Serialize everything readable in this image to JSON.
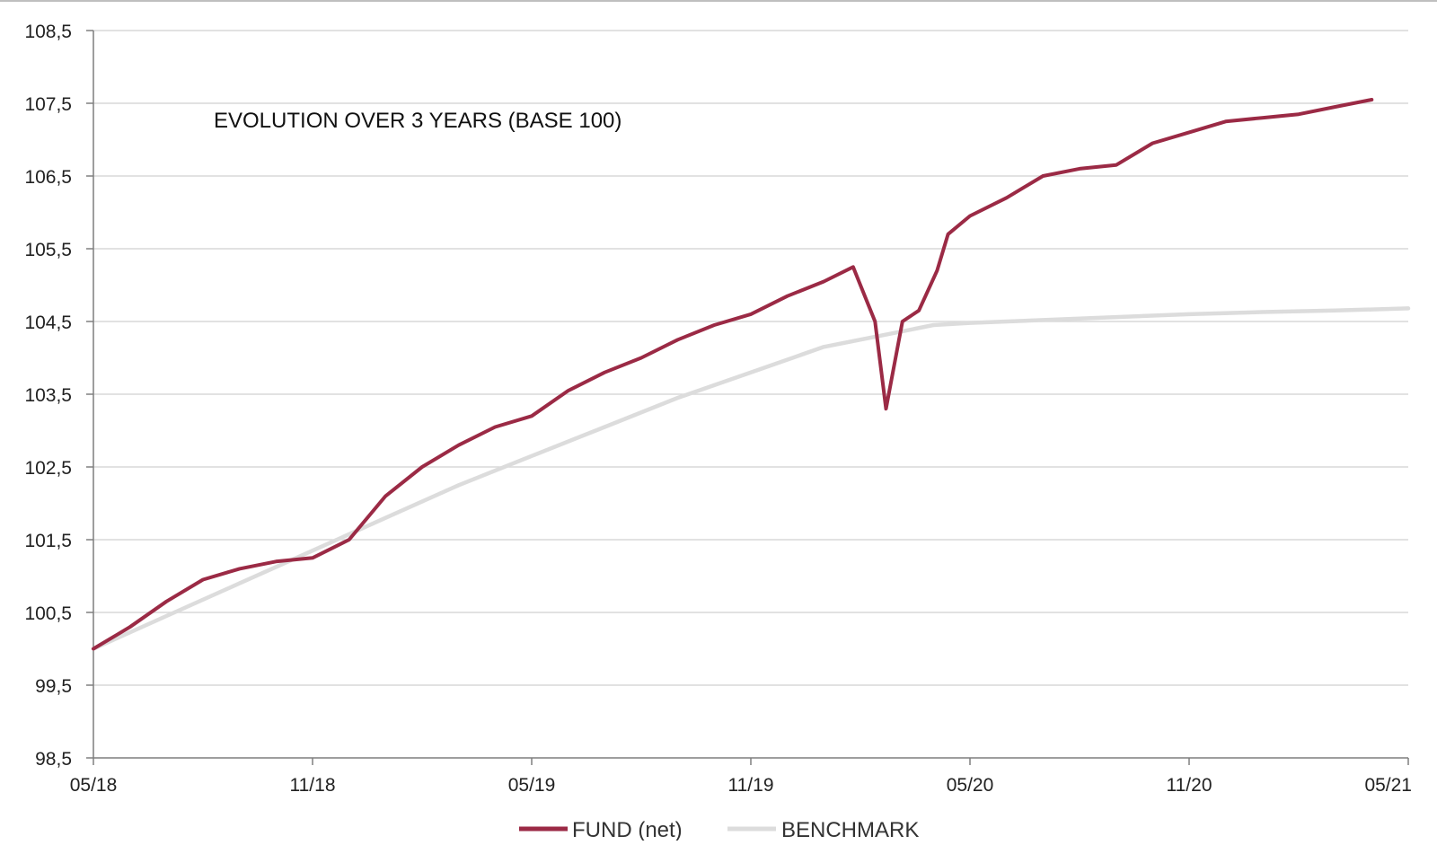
{
  "chart_data": {
    "type": "line",
    "title": "EVOLUTION OVER 3 YEARS (BASE 100)",
    "xlabel": "",
    "ylabel": "",
    "ylim": [
      98.5,
      108.5
    ],
    "yticks": [
      "108,5",
      "107,5",
      "106,5",
      "105,5",
      "104,5",
      "103,5",
      "102,5",
      "101,5",
      "100,5",
      "99,5",
      "98,5"
    ],
    "xticks": [
      "05/18",
      "11/18",
      "05/19",
      "11/19",
      "05/20",
      "11/20",
      "05/21"
    ],
    "grid": true,
    "legend": "bottom",
    "colors": {
      "fund": "#9b2a45",
      "benchmark": "#dcdcdc"
    },
    "series": [
      {
        "name": "FUND (net)",
        "key": "fund",
        "x": [
          "05/18",
          "06/18",
          "07/18",
          "08/18",
          "09/18",
          "10/18",
          "11/18",
          "12/18",
          "01/19",
          "02/19",
          "03/19",
          "04/19",
          "05/19",
          "06/19",
          "07/19",
          "08/19",
          "09/19",
          "10/19",
          "11/19",
          "12/19",
          "01/20",
          "02/20",
          "02/20",
          "03/20",
          "03/20",
          "03/20",
          "04/20",
          "04/20",
          "05/20",
          "05/20",
          "06/20",
          "07/20",
          "08/20",
          "09/20",
          "10/20",
          "11/20",
          "12/20",
          "01/21",
          "02/21",
          "03/21",
          "04/21",
          "05/21"
        ],
        "t": [
          0,
          1,
          2,
          3,
          4,
          5,
          6,
          7,
          8,
          9,
          10,
          11,
          12,
          13,
          14,
          15,
          16,
          17,
          18,
          19,
          20,
          20.8,
          21.0,
          21.4,
          21.7,
          21.85,
          22.15,
          22.6,
          23.1,
          23.4,
          24,
          25,
          26,
          27,
          28,
          29,
          30,
          31,
          32,
          33,
          34,
          35
        ],
        "values": [
          100.0,
          100.3,
          100.65,
          100.95,
          101.1,
          101.2,
          101.25,
          101.5,
          102.1,
          102.5,
          102.8,
          103.05,
          103.2,
          103.55,
          103.8,
          104.0,
          104.25,
          104.45,
          104.6,
          104.85,
          105.05,
          105.25,
          105.0,
          104.5,
          103.3,
          103.7,
          104.5,
          104.65,
          105.2,
          105.7,
          105.95,
          106.2,
          106.5,
          106.6,
          106.65,
          106.95,
          107.1,
          107.25,
          107.3,
          107.35,
          107.45,
          107.55
        ]
      },
      {
        "name": "BENCHMARK",
        "key": "benchmark",
        "x": [
          "05/18",
          "07/18",
          "09/18",
          "11/18",
          "01/19",
          "03/19",
          "05/19",
          "07/19",
          "09/19",
          "11/19",
          "01/20",
          "03/20",
          "04/20",
          "05/20",
          "07/20",
          "09/20",
          "11/20",
          "01/21",
          "03/21",
          "05/21"
        ],
        "t": [
          0,
          2,
          4,
          6,
          8,
          10,
          12,
          14,
          16,
          18,
          20,
          22,
          23,
          24,
          26,
          28,
          30,
          32,
          34,
          36
        ],
        "values": [
          100.0,
          100.45,
          100.9,
          101.35,
          101.8,
          102.25,
          102.65,
          103.05,
          103.45,
          103.8,
          104.15,
          104.35,
          104.45,
          104.48,
          104.52,
          104.56,
          104.6,
          104.63,
          104.65,
          104.68
        ]
      }
    ]
  }
}
